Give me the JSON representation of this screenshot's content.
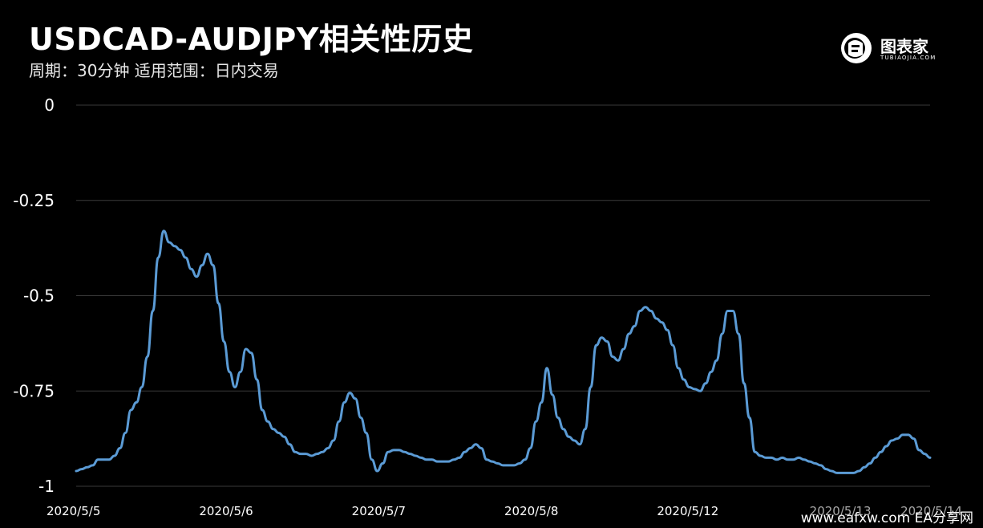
{
  "header": {
    "title": "USDCAD-AUDJPY相关性历史",
    "subtitle": "周期：30分钟  适用范围：日内交易"
  },
  "logo": {
    "text": "图表家",
    "sub": "TUBIAOJIA.COM"
  },
  "watermark": "www.eafxw.com   EA分享网",
  "colors": {
    "background": "#000000",
    "line": "#5b9bd5",
    "grid": "#3a3a3a"
  },
  "chart_data": {
    "type": "line",
    "title": "USDCAD-AUDJPY相关性历史",
    "xlabel": "",
    "ylabel": "",
    "ylim": [
      -1,
      0
    ],
    "yticks": [
      0,
      -0.25,
      -0.5,
      -0.75,
      -1
    ],
    "ytick_labels": [
      "0",
      "-0.25",
      "-0.5",
      "-0.75",
      "-1"
    ],
    "xtick_labels": [
      "2020/5/5",
      "2020/5/6",
      "2020/5/7",
      "2020/5/8",
      "2020/5/12",
      "2020/5/13",
      "2020/5/14"
    ],
    "grid": true,
    "series": [
      {
        "values": [
          -0.96,
          -0.955,
          -0.95,
          -0.945,
          -0.93,
          -0.93,
          -0.93,
          -0.92,
          -0.9,
          -0.86,
          -0.8,
          -0.78,
          -0.74,
          -0.66,
          -0.54,
          -0.4,
          -0.33,
          -0.36,
          -0.37,
          -0.38,
          -0.4,
          -0.43,
          -0.45,
          -0.42,
          -0.39,
          -0.42,
          -0.52,
          -0.62,
          -0.7,
          -0.74,
          -0.7,
          -0.64,
          -0.65,
          -0.72,
          -0.8,
          -0.83,
          -0.85,
          -0.86,
          -0.87,
          -0.89,
          -0.91,
          -0.915,
          -0.915,
          -0.92,
          -0.915,
          -0.91,
          -0.9,
          -0.88,
          -0.83,
          -0.78,
          -0.755,
          -0.77,
          -0.82,
          -0.86,
          -0.93,
          -0.96,
          -0.94,
          -0.91,
          -0.905,
          -0.905,
          -0.91,
          -0.915,
          -0.92,
          -0.925,
          -0.93,
          -0.93,
          -0.935,
          -0.935,
          -0.935,
          -0.93,
          -0.925,
          -0.91,
          -0.9,
          -0.89,
          -0.9,
          -0.93,
          -0.935,
          -0.94,
          -0.945,
          -0.945,
          -0.945,
          -0.94,
          -0.93,
          -0.9,
          -0.83,
          -0.78,
          -0.69,
          -0.76,
          -0.82,
          -0.85,
          -0.87,
          -0.88,
          -0.89,
          -0.85,
          -0.74,
          -0.63,
          -0.61,
          -0.62,
          -0.66,
          -0.67,
          -0.64,
          -0.6,
          -0.58,
          -0.54,
          -0.53,
          -0.54,
          -0.56,
          -0.57,
          -0.59,
          -0.63,
          -0.69,
          -0.72,
          -0.74,
          -0.745,
          -0.75,
          -0.73,
          -0.7,
          -0.67,
          -0.6,
          -0.54,
          -0.54,
          -0.6,
          -0.73,
          -0.82,
          -0.91,
          -0.92,
          -0.925,
          -0.925,
          -0.93,
          -0.925,
          -0.93,
          -0.93,
          -0.925,
          -0.93,
          -0.935,
          -0.94,
          -0.945,
          -0.955,
          -0.96,
          -0.965,
          -0.965,
          -0.965,
          -0.965,
          -0.96,
          -0.95,
          -0.94,
          -0.925,
          -0.91,
          -0.895,
          -0.88,
          -0.875,
          -0.865,
          -0.865,
          -0.875,
          -0.905,
          -0.915,
          -0.925
        ]
      }
    ]
  }
}
